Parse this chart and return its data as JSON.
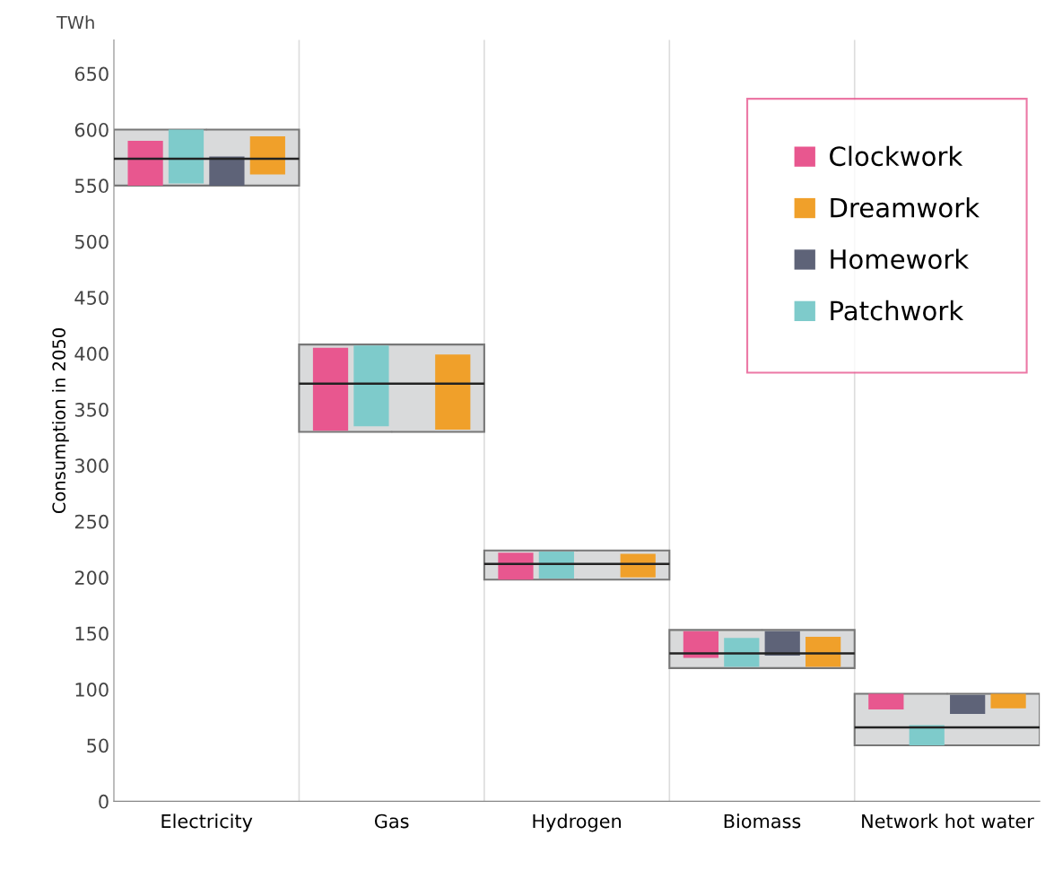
{
  "chart_data": {
    "type": "box",
    "ylabel": "Consumption in 2050",
    "annotations": [
      "TWh"
    ],
    "categories": [
      "Electricity",
      "Gas",
      "Hydrogen",
      "Biomass",
      "Network hot water"
    ],
    "boxes": [
      {
        "low": 550,
        "q1": 550,
        "median": 574,
        "q3": 600,
        "high": 600
      },
      {
        "low": 330,
        "q1": 330,
        "median": 373,
        "q3": 408,
        "high": 408
      },
      {
        "low": 198,
        "q1": 198,
        "median": 212,
        "q3": 224,
        "high": 224
      },
      {
        "low": 119,
        "q1": 119,
        "median": 132,
        "q3": 153,
        "high": 153
      },
      {
        "low": 50,
        "q1": 50,
        "median": 66,
        "q3": 96,
        "high": 96
      }
    ],
    "ylim": [
      0,
      680
    ],
    "yticks": [
      0,
      50,
      100,
      150,
      200,
      250,
      300,
      350,
      400,
      450,
      500,
      550,
      600,
      650
    ],
    "grid": false,
    "legend": "top right",
    "series": [
      {
        "name": "Clockwork",
        "type": "bar",
        "color": "#e8578f",
        "base": [
          550,
          331,
          198,
          128,
          82
        ],
        "values": [
          40,
          74,
          24,
          24,
          14
        ]
      },
      {
        "name": "Patchwork",
        "type": "bar",
        "color": "#7ecbcb",
        "base": [
          552,
          335,
          199,
          120,
          50
        ],
        "values": [
          48,
          72,
          24,
          26,
          18
        ]
      },
      {
        "name": "Homework",
        "type": "bar",
        "color": "#5e6378",
        "base": [
          550,
          null,
          null,
          130,
          78
        ],
        "values": [
          26,
          null,
          null,
          22,
          17
        ]
      },
      {
        "name": "Dreamwork",
        "type": "bar",
        "color": "#f0a02a",
        "base": [
          560,
          332,
          200,
          120,
          83
        ],
        "values": [
          34,
          67,
          21,
          27,
          13
        ]
      }
    ]
  }
}
